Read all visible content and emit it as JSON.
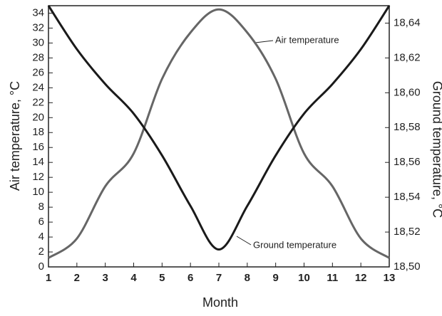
{
  "chart_data": {
    "type": "line",
    "x": [
      1,
      2,
      3,
      4,
      5,
      6,
      7,
      8,
      9,
      10,
      11,
      12,
      13
    ],
    "xlabel": "Month",
    "ylabel": "Air temperature, °C",
    "y2label": "Ground temperature, °C",
    "xlim": [
      1,
      13
    ],
    "xticks": [
      1,
      2,
      3,
      4,
      5,
      6,
      7,
      8,
      9,
      10,
      11,
      12,
      13
    ],
    "ylim": [
      0,
      35
    ],
    "yticks": [
      0,
      2,
      4,
      6,
      8,
      10,
      12,
      14,
      16,
      18,
      20,
      22,
      24,
      26,
      28,
      30,
      32,
      34
    ],
    "y2lim": [
      18.5,
      18.65
    ],
    "y2ticks": [
      {
        "value": 18.5,
        "label": "18,50"
      },
      {
        "value": 18.52,
        "label": "18,52"
      },
      {
        "value": 18.54,
        "label": "18,54"
      },
      {
        "value": 18.56,
        "label": "18,56"
      },
      {
        "value": 18.58,
        "label": "18,58"
      },
      {
        "value": 18.6,
        "label": "18,60"
      },
      {
        "value": 18.62,
        "label": "18,62"
      },
      {
        "value": 18.64,
        "label": "18,64"
      }
    ],
    "series": [
      {
        "name": "Air temperature",
        "color": "#666666",
        "values": [
          1.2,
          3.8,
          10.8,
          15.2,
          25.2,
          31.4,
          34.5,
          31.4,
          25.2,
          15.2,
          10.8,
          3.8,
          1.2
        ]
      },
      {
        "name": "Ground temperature",
        "color": "#1a1a1a",
        "axis": "y2",
        "values": [
          18.65,
          18.625,
          18.605,
          18.588,
          18.564,
          18.535,
          18.51,
          18.535,
          18.564,
          18.588,
          18.605,
          18.625,
          18.65
        ]
      }
    ]
  }
}
